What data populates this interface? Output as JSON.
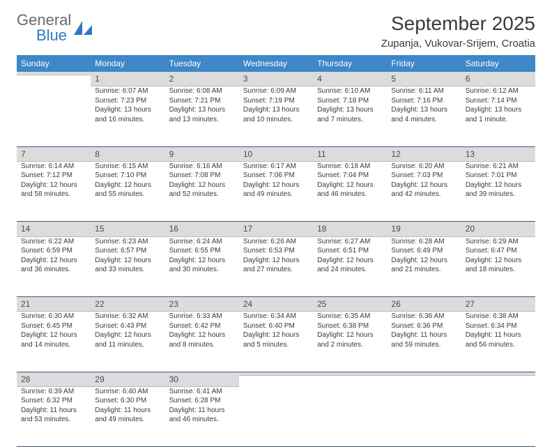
{
  "brand": {
    "part1": "General",
    "part2": "Blue"
  },
  "title": "September 2025",
  "location": "Zupanja, Vukovar-Srijem, Croatia",
  "colors": {
    "header_bg": "#3e87c8",
    "header_text": "#ffffff",
    "daynum_bg": "#dcdcdc",
    "rule": "#2f5a84",
    "brand_blue": "#2f78c4",
    "brand_gray": "#6a6a6a",
    "text": "#3a3a3a"
  },
  "weekdays": [
    "Sunday",
    "Monday",
    "Tuesday",
    "Wednesday",
    "Thursday",
    "Friday",
    "Saturday"
  ],
  "weeks": [
    [
      {
        "day": "",
        "sunrise": "",
        "sunset": "",
        "daylight": ""
      },
      {
        "day": "1",
        "sunrise": "Sunrise: 6:07 AM",
        "sunset": "Sunset: 7:23 PM",
        "daylight": "Daylight: 13 hours and 16 minutes."
      },
      {
        "day": "2",
        "sunrise": "Sunrise: 6:08 AM",
        "sunset": "Sunset: 7:21 PM",
        "daylight": "Daylight: 13 hours and 13 minutes."
      },
      {
        "day": "3",
        "sunrise": "Sunrise: 6:09 AM",
        "sunset": "Sunset: 7:19 PM",
        "daylight": "Daylight: 13 hours and 10 minutes."
      },
      {
        "day": "4",
        "sunrise": "Sunrise: 6:10 AM",
        "sunset": "Sunset: 7:18 PM",
        "daylight": "Daylight: 13 hours and 7 minutes."
      },
      {
        "day": "5",
        "sunrise": "Sunrise: 6:11 AM",
        "sunset": "Sunset: 7:16 PM",
        "daylight": "Daylight: 13 hours and 4 minutes."
      },
      {
        "day": "6",
        "sunrise": "Sunrise: 6:12 AM",
        "sunset": "Sunset: 7:14 PM",
        "daylight": "Daylight: 13 hours and 1 minute."
      }
    ],
    [
      {
        "day": "7",
        "sunrise": "Sunrise: 6:14 AM",
        "sunset": "Sunset: 7:12 PM",
        "daylight": "Daylight: 12 hours and 58 minutes."
      },
      {
        "day": "8",
        "sunrise": "Sunrise: 6:15 AM",
        "sunset": "Sunset: 7:10 PM",
        "daylight": "Daylight: 12 hours and 55 minutes."
      },
      {
        "day": "9",
        "sunrise": "Sunrise: 6:16 AM",
        "sunset": "Sunset: 7:08 PM",
        "daylight": "Daylight: 12 hours and 52 minutes."
      },
      {
        "day": "10",
        "sunrise": "Sunrise: 6:17 AM",
        "sunset": "Sunset: 7:06 PM",
        "daylight": "Daylight: 12 hours and 49 minutes."
      },
      {
        "day": "11",
        "sunrise": "Sunrise: 6:18 AM",
        "sunset": "Sunset: 7:04 PM",
        "daylight": "Daylight: 12 hours and 46 minutes."
      },
      {
        "day": "12",
        "sunrise": "Sunrise: 6:20 AM",
        "sunset": "Sunset: 7:03 PM",
        "daylight": "Daylight: 12 hours and 42 minutes."
      },
      {
        "day": "13",
        "sunrise": "Sunrise: 6:21 AM",
        "sunset": "Sunset: 7:01 PM",
        "daylight": "Daylight: 12 hours and 39 minutes."
      }
    ],
    [
      {
        "day": "14",
        "sunrise": "Sunrise: 6:22 AM",
        "sunset": "Sunset: 6:59 PM",
        "daylight": "Daylight: 12 hours and 36 minutes."
      },
      {
        "day": "15",
        "sunrise": "Sunrise: 6:23 AM",
        "sunset": "Sunset: 6:57 PM",
        "daylight": "Daylight: 12 hours and 33 minutes."
      },
      {
        "day": "16",
        "sunrise": "Sunrise: 6:24 AM",
        "sunset": "Sunset: 6:55 PM",
        "daylight": "Daylight: 12 hours and 30 minutes."
      },
      {
        "day": "17",
        "sunrise": "Sunrise: 6:26 AM",
        "sunset": "Sunset: 6:53 PM",
        "daylight": "Daylight: 12 hours and 27 minutes."
      },
      {
        "day": "18",
        "sunrise": "Sunrise: 6:27 AM",
        "sunset": "Sunset: 6:51 PM",
        "daylight": "Daylight: 12 hours and 24 minutes."
      },
      {
        "day": "19",
        "sunrise": "Sunrise: 6:28 AM",
        "sunset": "Sunset: 6:49 PM",
        "daylight": "Daylight: 12 hours and 21 minutes."
      },
      {
        "day": "20",
        "sunrise": "Sunrise: 6:29 AM",
        "sunset": "Sunset: 6:47 PM",
        "daylight": "Daylight: 12 hours and 18 minutes."
      }
    ],
    [
      {
        "day": "21",
        "sunrise": "Sunrise: 6:30 AM",
        "sunset": "Sunset: 6:45 PM",
        "daylight": "Daylight: 12 hours and 14 minutes."
      },
      {
        "day": "22",
        "sunrise": "Sunrise: 6:32 AM",
        "sunset": "Sunset: 6:43 PM",
        "daylight": "Daylight: 12 hours and 11 minutes."
      },
      {
        "day": "23",
        "sunrise": "Sunrise: 6:33 AM",
        "sunset": "Sunset: 6:42 PM",
        "daylight": "Daylight: 12 hours and 8 minutes."
      },
      {
        "day": "24",
        "sunrise": "Sunrise: 6:34 AM",
        "sunset": "Sunset: 6:40 PM",
        "daylight": "Daylight: 12 hours and 5 minutes."
      },
      {
        "day": "25",
        "sunrise": "Sunrise: 6:35 AM",
        "sunset": "Sunset: 6:38 PM",
        "daylight": "Daylight: 12 hours and 2 minutes."
      },
      {
        "day": "26",
        "sunrise": "Sunrise: 6:36 AM",
        "sunset": "Sunset: 6:36 PM",
        "daylight": "Daylight: 11 hours and 59 minutes."
      },
      {
        "day": "27",
        "sunrise": "Sunrise: 6:38 AM",
        "sunset": "Sunset: 6:34 PM",
        "daylight": "Daylight: 11 hours and 56 minutes."
      }
    ],
    [
      {
        "day": "28",
        "sunrise": "Sunrise: 6:39 AM",
        "sunset": "Sunset: 6:32 PM",
        "daylight": "Daylight: 11 hours and 53 minutes."
      },
      {
        "day": "29",
        "sunrise": "Sunrise: 6:40 AM",
        "sunset": "Sunset: 6:30 PM",
        "daylight": "Daylight: 11 hours and 49 minutes."
      },
      {
        "day": "30",
        "sunrise": "Sunrise: 6:41 AM",
        "sunset": "Sunset: 6:28 PM",
        "daylight": "Daylight: 11 hours and 46 minutes."
      },
      {
        "day": "",
        "sunrise": "",
        "sunset": "",
        "daylight": ""
      },
      {
        "day": "",
        "sunrise": "",
        "sunset": "",
        "daylight": ""
      },
      {
        "day": "",
        "sunrise": "",
        "sunset": "",
        "daylight": ""
      },
      {
        "day": "",
        "sunrise": "",
        "sunset": "",
        "daylight": ""
      }
    ]
  ]
}
